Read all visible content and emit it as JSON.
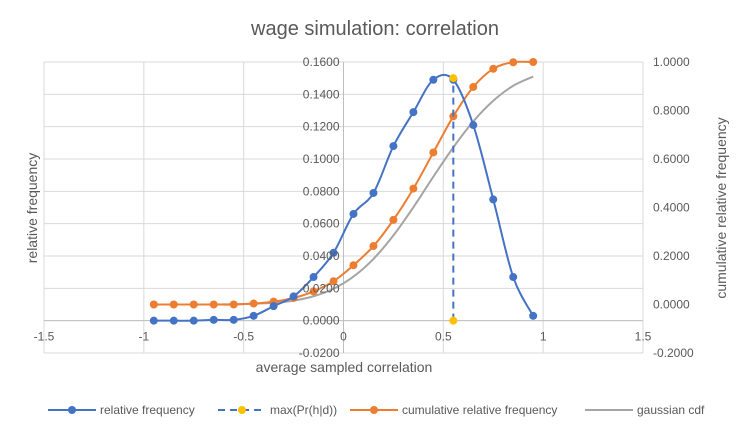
{
  "chart_data": {
    "type": "line",
    "title": "wage simulation: correlation",
    "xlabel": "average sampled correlation",
    "ylabel": "relative frequency",
    "y2label": "cumulative relative frequency",
    "xlim": [
      -1.5,
      1.5
    ],
    "ylim": [
      -0.02,
      0.16
    ],
    "y2lim": [
      -0.2,
      1.0
    ],
    "grid": true,
    "legend_position": "bottom",
    "x_ticks": [
      "-1.5",
      "-1",
      "-0.5",
      "0",
      "0.5",
      "1",
      "1.5"
    ],
    "x_tick_values": [
      -1.5,
      -1,
      -0.5,
      0,
      0.5,
      1,
      1.5
    ],
    "y_ticks": [
      "-0.0200",
      "0.0000",
      "0.0200",
      "0.0400",
      "0.0600",
      "0.0800",
      "0.1000",
      "0.1200",
      "0.1400",
      "0.1600"
    ],
    "y_tick_values": [
      -0.02,
      0,
      0.02,
      0.04,
      0.06,
      0.08,
      0.1,
      0.12,
      0.14,
      0.16
    ],
    "y2_ticks": [
      "-0.2000",
      "0.0000",
      "0.2000",
      "0.4000",
      "0.6000",
      "0.8000",
      "1.0000"
    ],
    "y2_tick_values": [
      -0.2,
      0,
      0.2,
      0.4,
      0.6,
      0.8,
      1.0
    ],
    "series": [
      {
        "name": "relative frequency",
        "axis": "left",
        "color": "#4472C4",
        "style": "smooth-marker",
        "x": [
          -0.95,
          -0.85,
          -0.75,
          -0.65,
          -0.55,
          -0.45,
          -0.35,
          -0.25,
          -0.15,
          -0.05,
          0.05,
          0.15,
          0.25,
          0.35,
          0.45,
          0.55,
          0.65,
          0.75,
          0.85,
          0.95
        ],
        "y": [
          0.0,
          0.0,
          0.0,
          0.0005,
          0.0005,
          0.003,
          0.009,
          0.015,
          0.027,
          0.042,
          0.066,
          0.079,
          0.108,
          0.129,
          0.149,
          0.149,
          0.121,
          0.075,
          0.027,
          0.003
        ]
      },
      {
        "name": "max(Pr(h|d))",
        "axis": "left",
        "color": "#FFC000",
        "line_color": "#4472C4",
        "style": "dashed-marker",
        "x": [
          0.55,
          0.55
        ],
        "y": [
          0.0,
          0.15
        ]
      },
      {
        "name": "cumulative relative frequency",
        "axis": "right",
        "color": "#ED7D31",
        "style": "smooth-marker",
        "x": [
          -0.95,
          -0.85,
          -0.75,
          -0.65,
          -0.55,
          -0.45,
          -0.35,
          -0.25,
          -0.15,
          -0.05,
          0.05,
          0.15,
          0.25,
          0.35,
          0.45,
          0.55,
          0.65,
          0.75,
          0.85,
          0.95
        ],
        "y": [
          0.0,
          0.0,
          0.0,
          0.0,
          0.0,
          0.004,
          0.012,
          0.027,
          0.054,
          0.096,
          0.162,
          0.241,
          0.349,
          0.478,
          0.627,
          0.776,
          0.897,
          0.972,
          0.999,
          1.0
        ]
      },
      {
        "name": "gaussian cdf",
        "axis": "right",
        "color": "#A5A5A5",
        "style": "smooth",
        "x": [
          -0.95,
          -0.85,
          -0.75,
          -0.65,
          -0.55,
          -0.45,
          -0.35,
          -0.25,
          -0.15,
          -0.05,
          0.05,
          0.15,
          0.25,
          0.35,
          0.45,
          0.55,
          0.65,
          0.75,
          0.85,
          0.95
        ],
        "y": [
          0.0,
          0.0,
          0.0,
          0.0,
          0.001,
          0.003,
          0.007,
          0.016,
          0.034,
          0.065,
          0.115,
          0.188,
          0.285,
          0.401,
          0.527,
          0.648,
          0.755,
          0.84,
          0.902,
          0.94
        ]
      }
    ]
  }
}
